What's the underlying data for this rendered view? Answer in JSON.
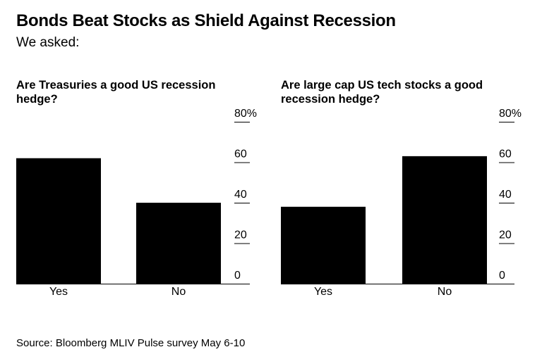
{
  "title": "Bonds Beat Stocks as Shield Against Recession",
  "subtitle": "We asked:",
  "source": "Source: Bloomberg MLIV Pulse survey May 6-10",
  "chart_data": [
    {
      "type": "bar",
      "title": "Are Treasuries a good US recession hedge?",
      "categories": [
        "Yes",
        "No"
      ],
      "values": [
        62,
        40
      ],
      "ylim": [
        0,
        80
      ],
      "yticks": [
        0,
        20,
        40,
        60,
        80
      ],
      "ytick_labels": [
        "0",
        "20",
        "40",
        "60",
        "80%"
      ],
      "bar_color": "#000000",
      "grid": false
    },
    {
      "type": "bar",
      "title": "Are large cap US tech stocks a good recession hedge?",
      "categories": [
        "Yes",
        "No"
      ],
      "values": [
        38,
        63
      ],
      "ylim": [
        0,
        80
      ],
      "yticks": [
        0,
        20,
        40,
        60,
        80
      ],
      "ytick_labels": [
        "0",
        "20",
        "40",
        "60",
        "80%"
      ],
      "bar_color": "#000000",
      "grid": false
    }
  ]
}
